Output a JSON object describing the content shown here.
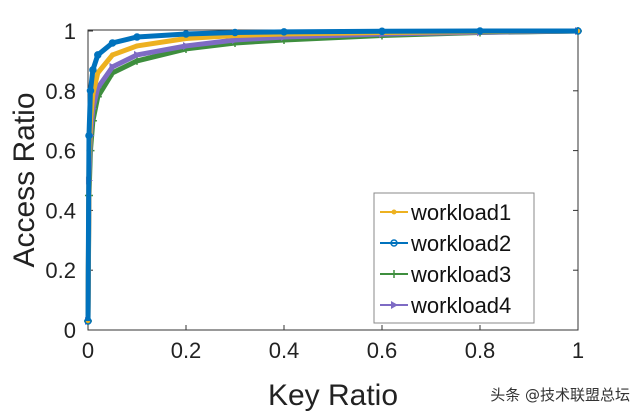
{
  "chart_data": {
    "type": "line",
    "title": "",
    "xlabel": "Key Ratio",
    "ylabel": "Access Ratio",
    "xlim": [
      0,
      1
    ],
    "ylim": [
      0,
      1
    ],
    "xticks": [
      "0",
      "0.2",
      "0.4",
      "0.6",
      "0.8",
      "1"
    ],
    "yticks": [
      "0",
      "0.2",
      "0.4",
      "0.6",
      "0.8",
      "1"
    ],
    "grid": false,
    "legend_position": "bottom-right",
    "x": [
      0,
      0.002,
      0.005,
      0.01,
      0.02,
      0.05,
      0.1,
      0.2,
      0.3,
      0.4,
      0.6,
      0.8,
      1
    ],
    "series": [
      {
        "name": "workload1",
        "color": "#EDB120",
        "marker": "dot",
        "values": [
          0.03,
          0.55,
          0.7,
          0.79,
          0.86,
          0.92,
          0.95,
          0.975,
          0.985,
          0.99,
          0.995,
          0.998,
          1
        ]
      },
      {
        "name": "workload2",
        "color": "#0072BD",
        "marker": "circle",
        "values": [
          0.03,
          0.65,
          0.8,
          0.87,
          0.92,
          0.96,
          0.98,
          0.99,
          0.995,
          0.997,
          0.999,
          1,
          1
        ]
      },
      {
        "name": "workload3",
        "color": "#3E8E3E",
        "marker": "plus",
        "values": [
          0.03,
          0.45,
          0.6,
          0.7,
          0.78,
          0.86,
          0.9,
          0.94,
          0.96,
          0.97,
          0.985,
          0.995,
          1
        ]
      },
      {
        "name": "workload4",
        "color": "#7E6BC4",
        "marker": "triangle",
        "values": [
          0.03,
          0.5,
          0.65,
          0.74,
          0.81,
          0.88,
          0.92,
          0.95,
          0.97,
          0.98,
          0.99,
          0.996,
          1
        ]
      }
    ]
  },
  "watermark": "头条 @技术联盟总坛"
}
